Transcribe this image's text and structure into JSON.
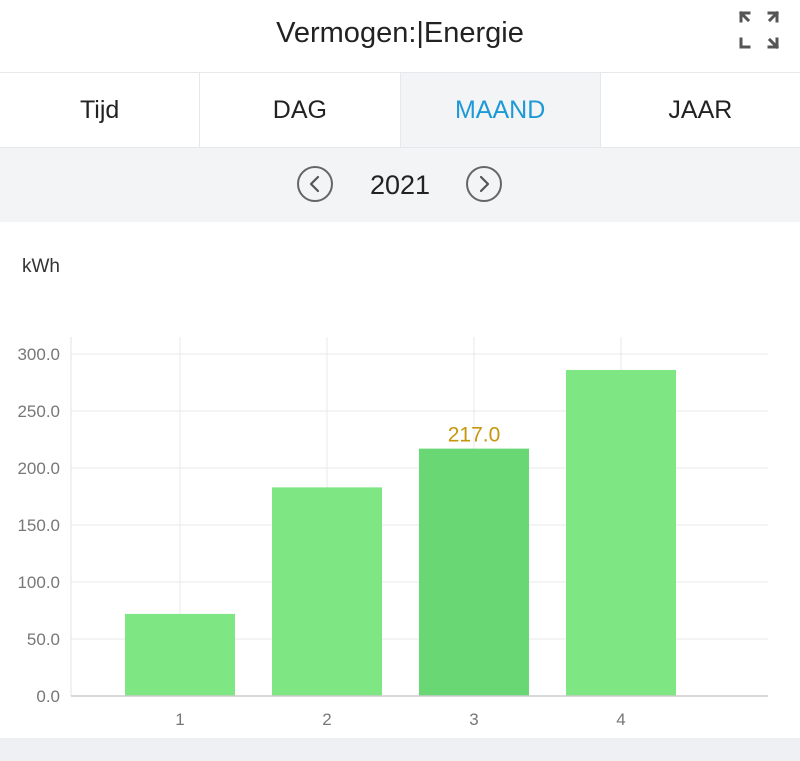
{
  "header": {
    "title": "Vermogen:|Energie"
  },
  "tabs": [
    {
      "label": "Tijd",
      "active": false
    },
    {
      "label": "DAG",
      "active": false
    },
    {
      "label": "MAAND",
      "active": true
    },
    {
      "label": "JAAR",
      "active": false
    }
  ],
  "date_nav": {
    "year": "2021",
    "prev_icon": "chevron-left-icon",
    "next_icon": "chevron-right-icon"
  },
  "icons": {
    "expand": "fullscreen-expand-icon"
  },
  "colors": {
    "active_tab": "#1d9ad6",
    "bar": "#7ee683",
    "bar_selected": "#69d774",
    "selected_label": "#c8960c"
  },
  "chart_data": {
    "type": "bar",
    "unit_label": "kWh",
    "categories": [
      "1",
      "2",
      "3",
      "4"
    ],
    "values": [
      72,
      183,
      217,
      286
    ],
    "selected_index": 2,
    "selected_value_label": "217.0",
    "ylim": [
      0,
      300
    ],
    "yticks": [
      "0.0",
      "50.0",
      "100.0",
      "150.0",
      "200.0",
      "250.0",
      "300.0"
    ],
    "grid": true
  }
}
